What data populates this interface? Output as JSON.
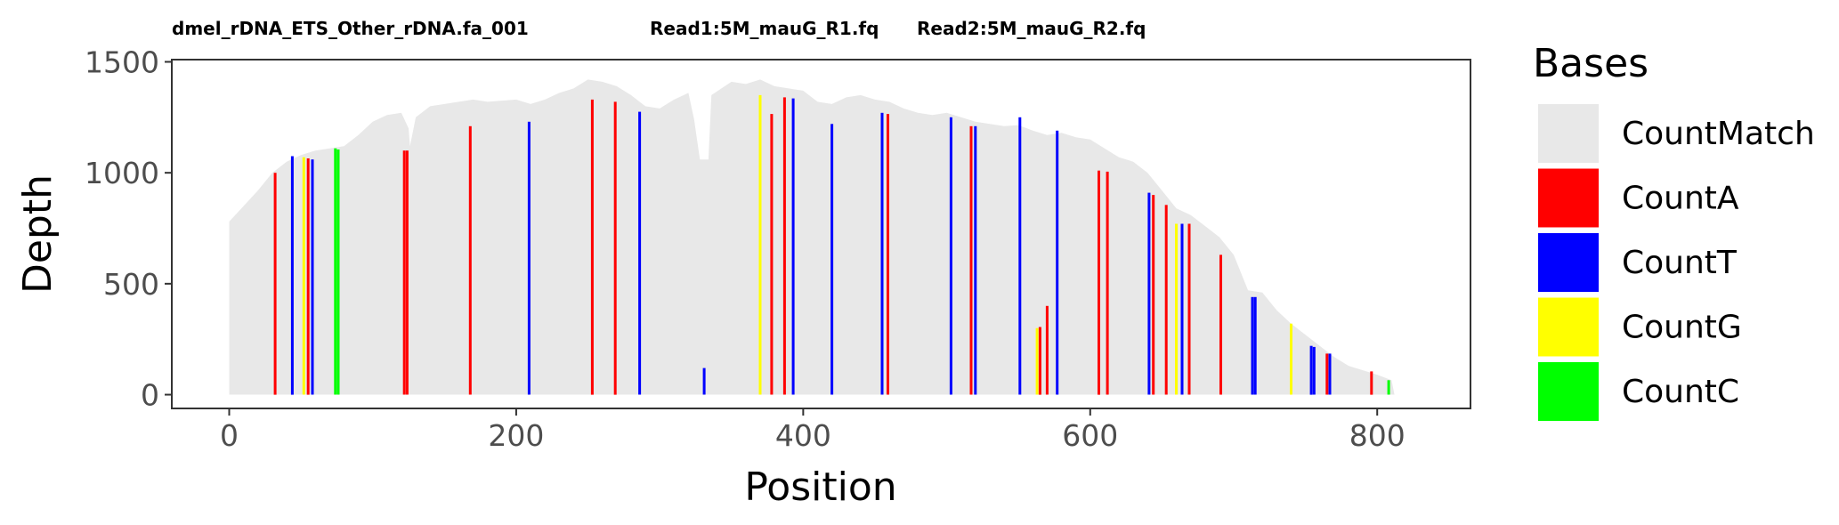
{
  "chart_data": {
    "type": "bar",
    "subtitle_parts": [
      "dmel_rDNA_ETS_Other_rDNA.fa_001",
      "Read1:5M_mauG_R1.fq",
      "Read2:5M_mauG_R2.fq"
    ],
    "xlabel": "Position",
    "ylabel": "Depth",
    "xlim": [
      -40,
      865
    ],
    "ylim": [
      -62,
      1510
    ],
    "xticks": [
      0,
      200,
      400,
      600,
      800
    ],
    "yticks": [
      0,
      500,
      1000,
      1500
    ],
    "legend": {
      "title": "Bases",
      "position": "right",
      "entries": [
        {
          "name": "CountMatch",
          "color": "#e8e8e8"
        },
        {
          "name": "CountA",
          "color": "#ff0000"
        },
        {
          "name": "CountT",
          "color": "#0000ff"
        },
        {
          "name": "CountG",
          "color": "#ffff00"
        },
        {
          "name": "CountC",
          "color": "#00ff00"
        }
      ]
    },
    "match_depth_profile": [
      [
        0,
        780
      ],
      [
        10,
        850
      ],
      [
        20,
        920
      ],
      [
        30,
        1000
      ],
      [
        40,
        1050
      ],
      [
        50,
        1080
      ],
      [
        60,
        1100
      ],
      [
        80,
        1120
      ],
      [
        90,
        1170
      ],
      [
        100,
        1230
      ],
      [
        110,
        1260
      ],
      [
        120,
        1270
      ],
      [
        125,
        1200
      ],
      [
        126,
        1120
      ],
      [
        130,
        1250
      ],
      [
        140,
        1300
      ],
      [
        150,
        1310
      ],
      [
        160,
        1320
      ],
      [
        170,
        1330
      ],
      [
        180,
        1320
      ],
      [
        190,
        1325
      ],
      [
        200,
        1330
      ],
      [
        210,
        1310
      ],
      [
        220,
        1330
      ],
      [
        230,
        1360
      ],
      [
        240,
        1380
      ],
      [
        250,
        1420
      ],
      [
        260,
        1410
      ],
      [
        270,
        1390
      ],
      [
        280,
        1350
      ],
      [
        290,
        1300
      ],
      [
        300,
        1290
      ],
      [
        310,
        1330
      ],
      [
        320,
        1360
      ],
      [
        324,
        1240
      ],
      [
        328,
        1060
      ],
      [
        334,
        1060
      ],
      [
        336,
        1350
      ],
      [
        350,
        1410
      ],
      [
        360,
        1400
      ],
      [
        370,
        1420
      ],
      [
        380,
        1390
      ],
      [
        390,
        1380
      ],
      [
        400,
        1370
      ],
      [
        410,
        1320
      ],
      [
        420,
        1310
      ],
      [
        430,
        1340
      ],
      [
        440,
        1350
      ],
      [
        450,
        1330
      ],
      [
        460,
        1320
      ],
      [
        470,
        1290
      ],
      [
        480,
        1270
      ],
      [
        490,
        1260
      ],
      [
        500,
        1270
      ],
      [
        510,
        1250
      ],
      [
        520,
        1230
      ],
      [
        530,
        1220
      ],
      [
        540,
        1210
      ],
      [
        550,
        1215
      ],
      [
        560,
        1190
      ],
      [
        570,
        1170
      ],
      [
        580,
        1180
      ],
      [
        590,
        1160
      ],
      [
        600,
        1150
      ],
      [
        610,
        1110
      ],
      [
        620,
        1070
      ],
      [
        630,
        1050
      ],
      [
        640,
        1000
      ],
      [
        650,
        920
      ],
      [
        660,
        840
      ],
      [
        670,
        810
      ],
      [
        680,
        760
      ],
      [
        690,
        710
      ],
      [
        700,
        630
      ],
      [
        710,
        470
      ],
      [
        720,
        460
      ],
      [
        730,
        380
      ],
      [
        740,
        320
      ],
      [
        750,
        270
      ],
      [
        760,
        220
      ],
      [
        770,
        170
      ],
      [
        780,
        130
      ],
      [
        790,
        110
      ],
      [
        800,
        90
      ],
      [
        810,
        65
      ],
      [
        812,
        0
      ]
    ],
    "mismatch_bars": [
      {
        "pos": 32,
        "value": 1000,
        "base": "CountA"
      },
      {
        "pos": 44,
        "value": 1075,
        "base": "CountT"
      },
      {
        "pos": 52,
        "value": 1070,
        "base": "CountG"
      },
      {
        "pos": 55,
        "value": 1065,
        "base": "CountA"
      },
      {
        "pos": 58,
        "value": 1060,
        "base": "CountT"
      },
      {
        "pos": 74,
        "value": 1110,
        "base": "CountC"
      },
      {
        "pos": 76,
        "value": 1105,
        "base": "CountC"
      },
      {
        "pos": 122,
        "value": 1100,
        "base": "CountA"
      },
      {
        "pos": 124,
        "value": 1100,
        "base": "CountA"
      },
      {
        "pos": 168,
        "value": 1210,
        "base": "CountA"
      },
      {
        "pos": 209,
        "value": 1230,
        "base": "CountT"
      },
      {
        "pos": 253,
        "value": 1330,
        "base": "CountA"
      },
      {
        "pos": 269,
        "value": 1320,
        "base": "CountA"
      },
      {
        "pos": 286,
        "value": 1275,
        "base": "CountT"
      },
      {
        "pos": 331,
        "value": 120,
        "base": "CountT"
      },
      {
        "pos": 370,
        "value": 1350,
        "base": "CountG"
      },
      {
        "pos": 378,
        "value": 1265,
        "base": "CountA"
      },
      {
        "pos": 387,
        "value": 1340,
        "base": "CountA"
      },
      {
        "pos": 393,
        "value": 1335,
        "base": "CountT"
      },
      {
        "pos": 420,
        "value": 1220,
        "base": "CountT"
      },
      {
        "pos": 455,
        "value": 1270,
        "base": "CountT"
      },
      {
        "pos": 459,
        "value": 1265,
        "base": "CountA"
      },
      {
        "pos": 503,
        "value": 1250,
        "base": "CountT"
      },
      {
        "pos": 517,
        "value": 1210,
        "base": "CountA"
      },
      {
        "pos": 520,
        "value": 1210,
        "base": "CountT"
      },
      {
        "pos": 551,
        "value": 1250,
        "base": "CountT"
      },
      {
        "pos": 563,
        "value": 300,
        "base": "CountG"
      },
      {
        "pos": 565,
        "value": 305,
        "base": "CountA"
      },
      {
        "pos": 570,
        "value": 400,
        "base": "CountA"
      },
      {
        "pos": 577,
        "value": 1190,
        "base": "CountT"
      },
      {
        "pos": 606,
        "value": 1010,
        "base": "CountA"
      },
      {
        "pos": 612,
        "value": 1005,
        "base": "CountA"
      },
      {
        "pos": 641,
        "value": 910,
        "base": "CountT"
      },
      {
        "pos": 644,
        "value": 900,
        "base": "CountA"
      },
      {
        "pos": 653,
        "value": 855,
        "base": "CountA"
      },
      {
        "pos": 660,
        "value": 770,
        "base": "CountG"
      },
      {
        "pos": 664,
        "value": 770,
        "base": "CountT"
      },
      {
        "pos": 669,
        "value": 770,
        "base": "CountA"
      },
      {
        "pos": 691,
        "value": 630,
        "base": "CountA"
      },
      {
        "pos": 713,
        "value": 440,
        "base": "CountT"
      },
      {
        "pos": 715,
        "value": 440,
        "base": "CountT"
      },
      {
        "pos": 740,
        "value": 320,
        "base": "CountG"
      },
      {
        "pos": 754,
        "value": 220,
        "base": "CountT"
      },
      {
        "pos": 756,
        "value": 215,
        "base": "CountT"
      },
      {
        "pos": 765,
        "value": 185,
        "base": "CountA"
      },
      {
        "pos": 767,
        "value": 185,
        "base": "CountT"
      },
      {
        "pos": 796,
        "value": 105,
        "base": "CountA"
      },
      {
        "pos": 808,
        "value": 65,
        "base": "CountC"
      }
    ]
  }
}
